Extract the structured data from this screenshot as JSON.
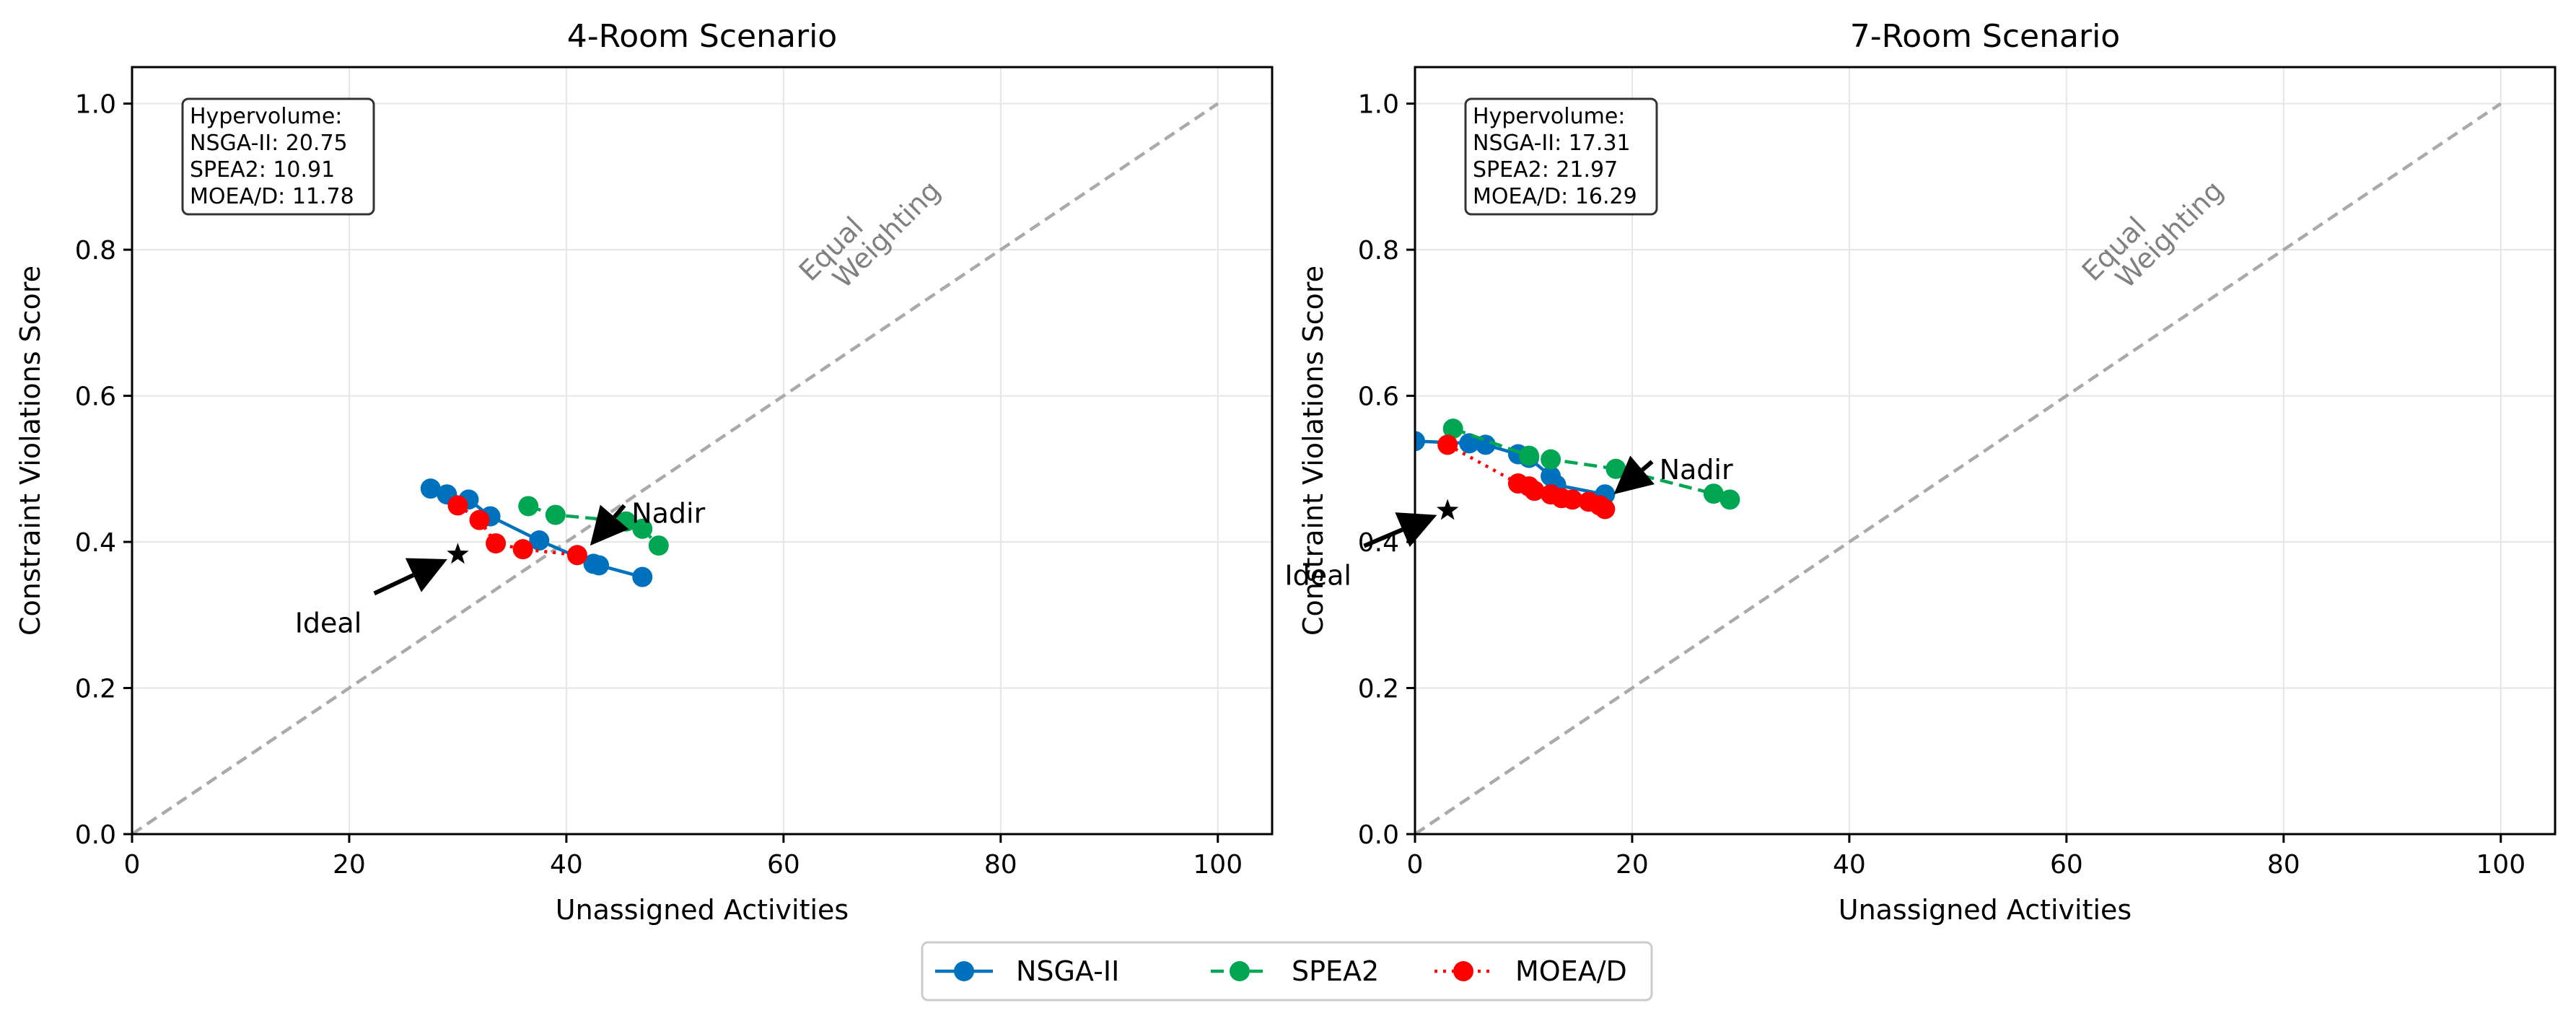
{
  "colors": {
    "NSGA-II": "#0072BD",
    "SPEA2": "#00A651",
    "MOEA/D": "#FF0000",
    "diagonal": "#aaaaaa",
    "grid": "#e6e6e6"
  },
  "legend": {
    "placement": "bottom-center",
    "entries": [
      {
        "label": "NSGA-II",
        "color": "#0072BD",
        "dash": "solid"
      },
      {
        "label": "SPEA2",
        "color": "#00A651",
        "dash": "dashed"
      },
      {
        "label": "MOEA/D",
        "color": "#FF0000",
        "dash": "dotted"
      }
    ]
  },
  "chart_data": [
    {
      "type": "scatter",
      "title": "4-Room Scenario",
      "xlabel": "Unassigned Activities",
      "ylabel": "Constraint Violations Score",
      "xlim": [
        0,
        105
      ],
      "ylim": [
        0,
        1.05
      ],
      "xticks": [
        0,
        20,
        40,
        60,
        80,
        100
      ],
      "yticks": [
        0.0,
        0.2,
        0.4,
        0.6,
        0.8,
        1.0
      ],
      "xtick_labels": [
        "0",
        "20",
        "40",
        "60",
        "80",
        "100"
      ],
      "ytick_labels": [
        "0.0",
        "0.2",
        "0.4",
        "0.6",
        "0.8",
        "1.0"
      ],
      "grid": true,
      "diagonal": {
        "x": [
          0,
          100
        ],
        "y": [
          0,
          1.0
        ],
        "label_lines": [
          "Equal",
          "Weighting"
        ]
      },
      "hypervolume_lines": [
        "Hypervolume:",
        "NSGA-II: 20.75",
        "SPEA2: 10.91",
        "MOEA/D: 11.78"
      ],
      "series": [
        {
          "name": "NSGA-II",
          "x": [
            27.5,
            29.0,
            31.0,
            33.0,
            37.5,
            42.5,
            43.0,
            47.0
          ],
          "y": [
            0.473,
            0.465,
            0.458,
            0.435,
            0.402,
            0.37,
            0.368,
            0.352
          ]
        },
        {
          "name": "SPEA2",
          "x": [
            36.5,
            39.0,
            45.5,
            47.0,
            48.5
          ],
          "y": [
            0.449,
            0.437,
            0.428,
            0.418,
            0.395
          ]
        },
        {
          "name": "MOEA/D",
          "x": [
            30.0,
            32.0,
            33.5,
            36.0,
            41.0
          ],
          "y": [
            0.45,
            0.43,
            0.398,
            0.39,
            0.382
          ]
        }
      ],
      "annotations": [
        {
          "label": "Ideal",
          "point": [
            30.0,
            0.383
          ],
          "text_at": [
            15.0,
            0.29
          ]
        },
        {
          "label": "Nadir",
          "point": [
            41.5,
            0.383
          ],
          "text_at": [
            46.0,
            0.44
          ]
        }
      ]
    },
    {
      "type": "scatter",
      "title": "7-Room Scenario",
      "xlabel": "Unassigned Activities",
      "ylabel": "Constraint Violations Score",
      "xlim": [
        0,
        105
      ],
      "ylim": [
        0,
        1.05
      ],
      "xticks": [
        0,
        20,
        40,
        60,
        80,
        100
      ],
      "yticks": [
        0.0,
        0.2,
        0.4,
        0.6,
        0.8,
        1.0
      ],
      "xtick_labels": [
        "0",
        "20",
        "40",
        "60",
        "80",
        "100"
      ],
      "ytick_labels": [
        "0.0",
        "0.2",
        "0.4",
        "0.6",
        "0.8",
        "1.0"
      ],
      "grid": true,
      "diagonal": {
        "x": [
          0,
          100
        ],
        "y": [
          0,
          1.0
        ],
        "label_lines": [
          "Equal",
          "Weighting"
        ]
      },
      "hypervolume_lines": [
        "Hypervolume:",
        "NSGA-II: 17.31",
        "SPEA2: 21.97",
        "MOEA/D: 16.29"
      ],
      "series": [
        {
          "name": "NSGA-II",
          "x": [
            0.0,
            5.0,
            6.5,
            9.5,
            10.5,
            12.5,
            13.0,
            17.5
          ],
          "y": [
            0.538,
            0.535,
            0.533,
            0.52,
            0.515,
            0.49,
            0.478,
            0.465
          ]
        },
        {
          "name": "SPEA2",
          "x": [
            3.5,
            10.5,
            12.5,
            18.5,
            27.5,
            29.0
          ],
          "y": [
            0.555,
            0.518,
            0.513,
            0.5,
            0.466,
            0.458
          ]
        },
        {
          "name": "MOEA/D",
          "x": [
            3.0,
            9.5,
            10.5,
            11.0,
            12.5,
            13.5,
            14.5,
            16.0,
            17.0,
            17.5
          ],
          "y": [
            0.533,
            0.48,
            0.476,
            0.47,
            0.465,
            0.46,
            0.458,
            0.455,
            0.45,
            0.445
          ]
        }
      ],
      "annotations": [
        {
          "label": "Ideal",
          "point": [
            3.0,
            0.443
          ],
          "text_at": [
            -12.0,
            0.355
          ]
        },
        {
          "label": "Nadir",
          "point": [
            17.5,
            0.455
          ],
          "text_at": [
            22.5,
            0.5
          ]
        }
      ]
    }
  ]
}
